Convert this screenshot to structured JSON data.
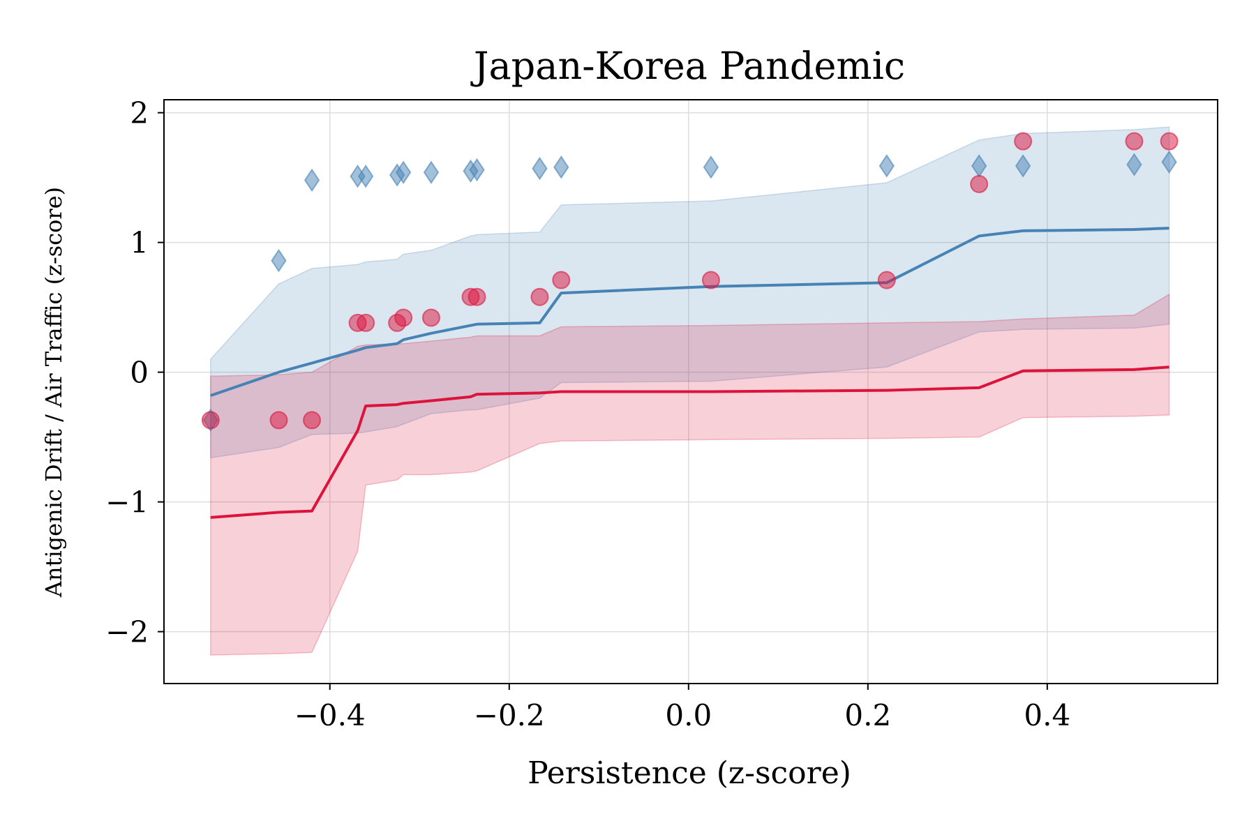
{
  "chart_data": {
    "type": "line",
    "title": "Japan-Korea Pandemic",
    "xlabel": "Persistence (z-score)",
    "ylabel": "Antigenic Drift / Air Traffic (z-score)",
    "xlim": [
      -0.585,
      0.59
    ],
    "ylim": [
      -2.4,
      2.1
    ],
    "xticks": [
      -0.4,
      -0.2,
      0.0,
      0.2,
      0.4
    ],
    "xtick_labels": [
      "−0.4",
      "−0.2",
      "0.0",
      "0.2",
      "0.4"
    ],
    "yticks": [
      -2,
      -1,
      0,
      1,
      2
    ],
    "ytick_labels": [
      "−2",
      "−1",
      "0",
      "1",
      "2"
    ],
    "grid": true,
    "colors": {
      "blue": "#4682b4",
      "red": "#dc143c"
    },
    "series": [
      {
        "color": "#4682b4",
        "line": {
          "x": [
            -0.533,
            -0.457,
            -0.42,
            -0.369,
            -0.36,
            -0.325,
            -0.318,
            -0.287,
            -0.243,
            -0.236,
            -0.166,
            -0.142,
            0.025,
            0.221,
            0.324,
            0.373,
            0.497,
            0.536
          ],
          "y": [
            -0.18,
            0.0,
            0.07,
            0.17,
            0.19,
            0.22,
            0.25,
            0.3,
            0.36,
            0.37,
            0.38,
            0.61,
            0.66,
            0.69,
            1.05,
            1.09,
            1.1,
            1.11
          ]
        },
        "band": {
          "x": [
            -0.533,
            -0.457,
            -0.42,
            -0.369,
            -0.36,
            -0.325,
            -0.318,
            -0.287,
            -0.243,
            -0.236,
            -0.166,
            -0.142,
            0.025,
            0.221,
            0.324,
            0.373,
            0.497,
            0.536
          ],
          "upper": [
            0.1,
            0.68,
            0.8,
            0.83,
            0.85,
            0.87,
            0.91,
            0.94,
            1.05,
            1.06,
            1.08,
            1.29,
            1.32,
            1.46,
            1.79,
            1.84,
            1.87,
            1.89
          ],
          "lower": [
            -0.66,
            -0.58,
            -0.48,
            -0.47,
            -0.46,
            -0.42,
            -0.4,
            -0.32,
            -0.29,
            -0.29,
            -0.2,
            -0.08,
            -0.07,
            0.04,
            0.31,
            0.33,
            0.34,
            0.37
          ]
        },
        "points": {
          "marker": "diamond",
          "x": [
            -0.533,
            -0.457,
            -0.42,
            -0.369,
            -0.36,
            -0.325,
            -0.318,
            -0.287,
            -0.243,
            -0.236,
            -0.166,
            -0.142,
            0.025,
            0.221,
            0.324,
            0.373,
            0.497,
            0.536
          ],
          "y": [
            -0.37,
            0.86,
            1.48,
            1.51,
            1.51,
            1.52,
            1.54,
            1.54,
            1.55,
            1.56,
            1.57,
            1.58,
            1.58,
            1.59,
            1.59,
            1.59,
            1.6,
            1.62
          ]
        }
      },
      {
        "color": "#dc143c",
        "line": {
          "x": [
            -0.533,
            -0.457,
            -0.42,
            -0.369,
            -0.36,
            -0.325,
            -0.318,
            -0.287,
            -0.243,
            -0.236,
            -0.166,
            -0.142,
            0.025,
            0.221,
            0.324,
            0.373,
            0.497,
            0.536
          ],
          "y": [
            -1.12,
            -1.08,
            -1.07,
            -0.45,
            -0.26,
            -0.25,
            -0.24,
            -0.22,
            -0.19,
            -0.17,
            -0.16,
            -0.15,
            -0.15,
            -0.14,
            -0.12,
            0.01,
            0.02,
            0.04
          ]
        },
        "band": {
          "x": [
            -0.533,
            -0.457,
            -0.42,
            -0.369,
            -0.36,
            -0.325,
            -0.318,
            -0.287,
            -0.243,
            -0.236,
            -0.166,
            -0.142,
            0.025,
            0.221,
            0.324,
            0.373,
            0.497,
            0.536
          ],
          "upper": [
            -0.03,
            -0.02,
            0.0,
            0.2,
            0.21,
            0.22,
            0.22,
            0.24,
            0.27,
            0.28,
            0.28,
            0.35,
            0.36,
            0.38,
            0.39,
            0.41,
            0.44,
            0.6
          ],
          "lower": [
            -2.18,
            -2.17,
            -2.16,
            -1.38,
            -0.87,
            -0.83,
            -0.79,
            -0.79,
            -0.77,
            -0.76,
            -0.55,
            -0.53,
            -0.52,
            -0.51,
            -0.5,
            -0.35,
            -0.34,
            -0.33
          ]
        },
        "points": {
          "marker": "circle",
          "x": [
            -0.533,
            -0.457,
            -0.42,
            -0.369,
            -0.36,
            -0.325,
            -0.318,
            -0.287,
            -0.243,
            -0.236,
            -0.166,
            -0.142,
            0.025,
            0.221,
            0.324,
            0.373,
            0.497,
            0.536
          ],
          "y": [
            -0.37,
            -0.37,
            -0.37,
            0.38,
            0.38,
            0.38,
            0.42,
            0.42,
            0.58,
            0.58,
            0.58,
            0.71,
            0.71,
            0.71,
            1.45,
            1.78,
            1.78,
            1.78
          ]
        }
      }
    ]
  }
}
